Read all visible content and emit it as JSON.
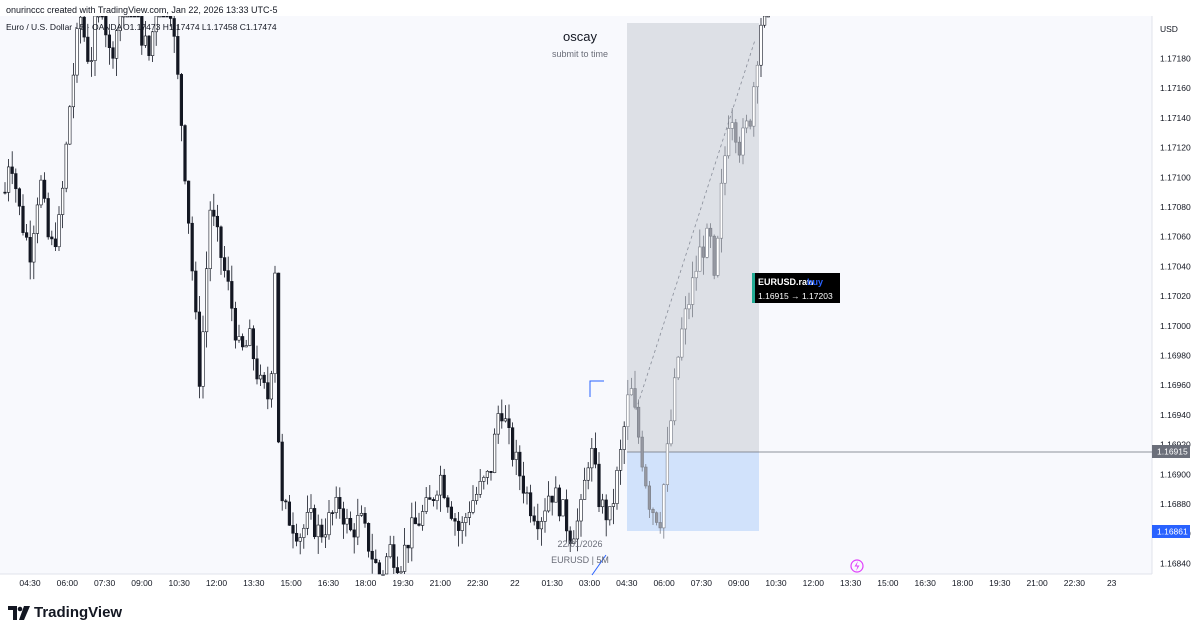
{
  "header": {
    "attribution": "onurinccc created with TradingView.com, Jan 22, 2026 13:33 UTC-5"
  },
  "legend": {
    "symbol": "Euro / U.S. Dollar · 5 · OANDA",
    "ohlc": "O1.17473 H1.17474 L1.17458 C1.17474"
  },
  "annotation": {
    "title": "oscay",
    "subtitle": "submit to time"
  },
  "watermark": {
    "date": "22/01/2026",
    "symbol": "EURUSD | 5M"
  },
  "trade_label": {
    "symbol": "EURUSD.raw",
    "side": "buy",
    "prices": "1.16915 → 1.17203"
  },
  "price_axis": {
    "currency": "USD",
    "current_price": "1.16915",
    "low_marker": "1.16861"
  },
  "footer": {
    "brand": "TradingView"
  },
  "colors": {
    "up": "#ffffff",
    "down": "#131722",
    "target_zone": "#d6d9e0",
    "stop_zone": "#cfe0fb",
    "price_badge": "#6b6f7a",
    "low_badge": "#2962ff",
    "label_bg": "#000000",
    "label_accent": "#22ab94",
    "label_side": "#2962ff"
  },
  "chart_data": {
    "type": "candlestick",
    "title": "Euro / U.S. Dollar · 5 · OANDA",
    "ylim": [
      1.1683,
      1.1726
    ],
    "y_ticks": [
      "1.17180",
      "1.17160",
      "1.17140",
      "1.17120",
      "1.17100",
      "1.17080",
      "1.17060",
      "1.17040",
      "1.17020",
      "1.17000",
      "1.16980",
      "1.16960",
      "1.16940",
      "1.16920",
      "1.16900",
      "1.16880",
      "1.16860",
      "1.16840"
    ],
    "x_ticks": [
      "04:30",
      "06:00",
      "07:30",
      "09:00",
      "10:30",
      "12:00",
      "13:30",
      "15:00",
      "16:30",
      "18:00",
      "19:30",
      "21:00",
      "22:30",
      "22",
      "01:30",
      "03:00",
      "04:30",
      "06:00",
      "07:30",
      "09:00",
      "10:30",
      "12:00",
      "13:30",
      "15:00",
      "16:30",
      "18:00",
      "19:30",
      "21:00",
      "22:30",
      "23"
    ],
    "path_points": [
      [
        0,
        1.1706
      ],
      [
        10,
        1.1712
      ],
      [
        20,
        1.17075
      ],
      [
        30,
        1.1705
      ],
      [
        40,
        1.171
      ],
      [
        50,
        1.1705
      ],
      [
        60,
        1.1707
      ],
      [
        70,
        1.1715
      ],
      [
        80,
        1.1721
      ],
      [
        90,
        1.17175
      ],
      [
        100,
        1.1723
      ],
      [
        110,
        1.1718
      ],
      [
        120,
        1.1721
      ],
      [
        130,
        1.1724
      ],
      [
        140,
        1.172
      ],
      [
        150,
        1.1718
      ],
      [
        160,
        1.1725
      ],
      [
        170,
        1.1722
      ],
      [
        180,
        1.1715
      ],
      [
        190,
        1.1706
      ],
      [
        200,
        1.1696
      ],
      [
        210,
        1.1708
      ],
      [
        220,
        1.1705
      ],
      [
        230,
        1.1702
      ],
      [
        240,
        1.1698
      ],
      [
        250,
        1.1699
      ],
      [
        260,
        1.1696
      ],
      [
        270,
        1.1695
      ],
      [
        275,
        1.1704
      ],
      [
        280,
        1.1688
      ],
      [
        290,
        1.1687
      ],
      [
        300,
        1.1686
      ],
      [
        310,
        1.1687
      ],
      [
        320,
        1.1686
      ],
      [
        330,
        1.1687
      ],
      [
        340,
        1.1688
      ],
      [
        350,
        1.1686
      ],
      [
        360,
        1.1687
      ],
      [
        370,
        1.1685
      ],
      [
        380,
        1.1683
      ],
      [
        390,
        1.1685
      ],
      [
        400,
        1.1684
      ],
      [
        410,
        1.1686
      ],
      [
        420,
        1.1687
      ],
      [
        430,
        1.1688
      ],
      [
        440,
        1.169
      ],
      [
        450,
        1.1688
      ],
      [
        460,
        1.1686
      ],
      [
        470,
        1.1688
      ],
      [
        480,
        1.1689
      ],
      [
        490,
        1.169
      ],
      [
        500,
        1.1695
      ],
      [
        510,
        1.1692
      ],
      [
        520,
        1.169
      ],
      [
        530,
        1.1688
      ],
      [
        540,
        1.1687
      ],
      [
        550,
        1.1689
      ],
      [
        560,
        1.1688
      ],
      [
        570,
        1.1686
      ],
      [
        580,
        1.1687
      ],
      [
        590,
        1.1692
      ],
      [
        600,
        1.1688
      ],
      [
        610,
        1.1687
      ],
      [
        620,
        1.1691
      ],
      [
        630,
        1.1696
      ],
      [
        640,
        1.1692
      ],
      [
        650,
        1.1688
      ],
      [
        660,
        1.1687
      ],
      [
        670,
        1.1693
      ],
      [
        680,
        1.1699
      ],
      [
        690,
        1.1702
      ],
      [
        700,
        1.1705
      ],
      [
        710,
        1.1706
      ],
      [
        715,
        1.1702
      ],
      [
        720,
        1.1708
      ],
      [
        730,
        1.1715
      ],
      [
        740,
        1.1712
      ],
      [
        750,
        1.1714
      ],
      [
        760,
        1.172
      ],
      [
        770,
        1.1725
      ]
    ],
    "position": {
      "entry": 1.16915,
      "target": 1.17203,
      "stop": 1.16861,
      "start_x": 627,
      "end_x": 759
    },
    "grid": false
  }
}
